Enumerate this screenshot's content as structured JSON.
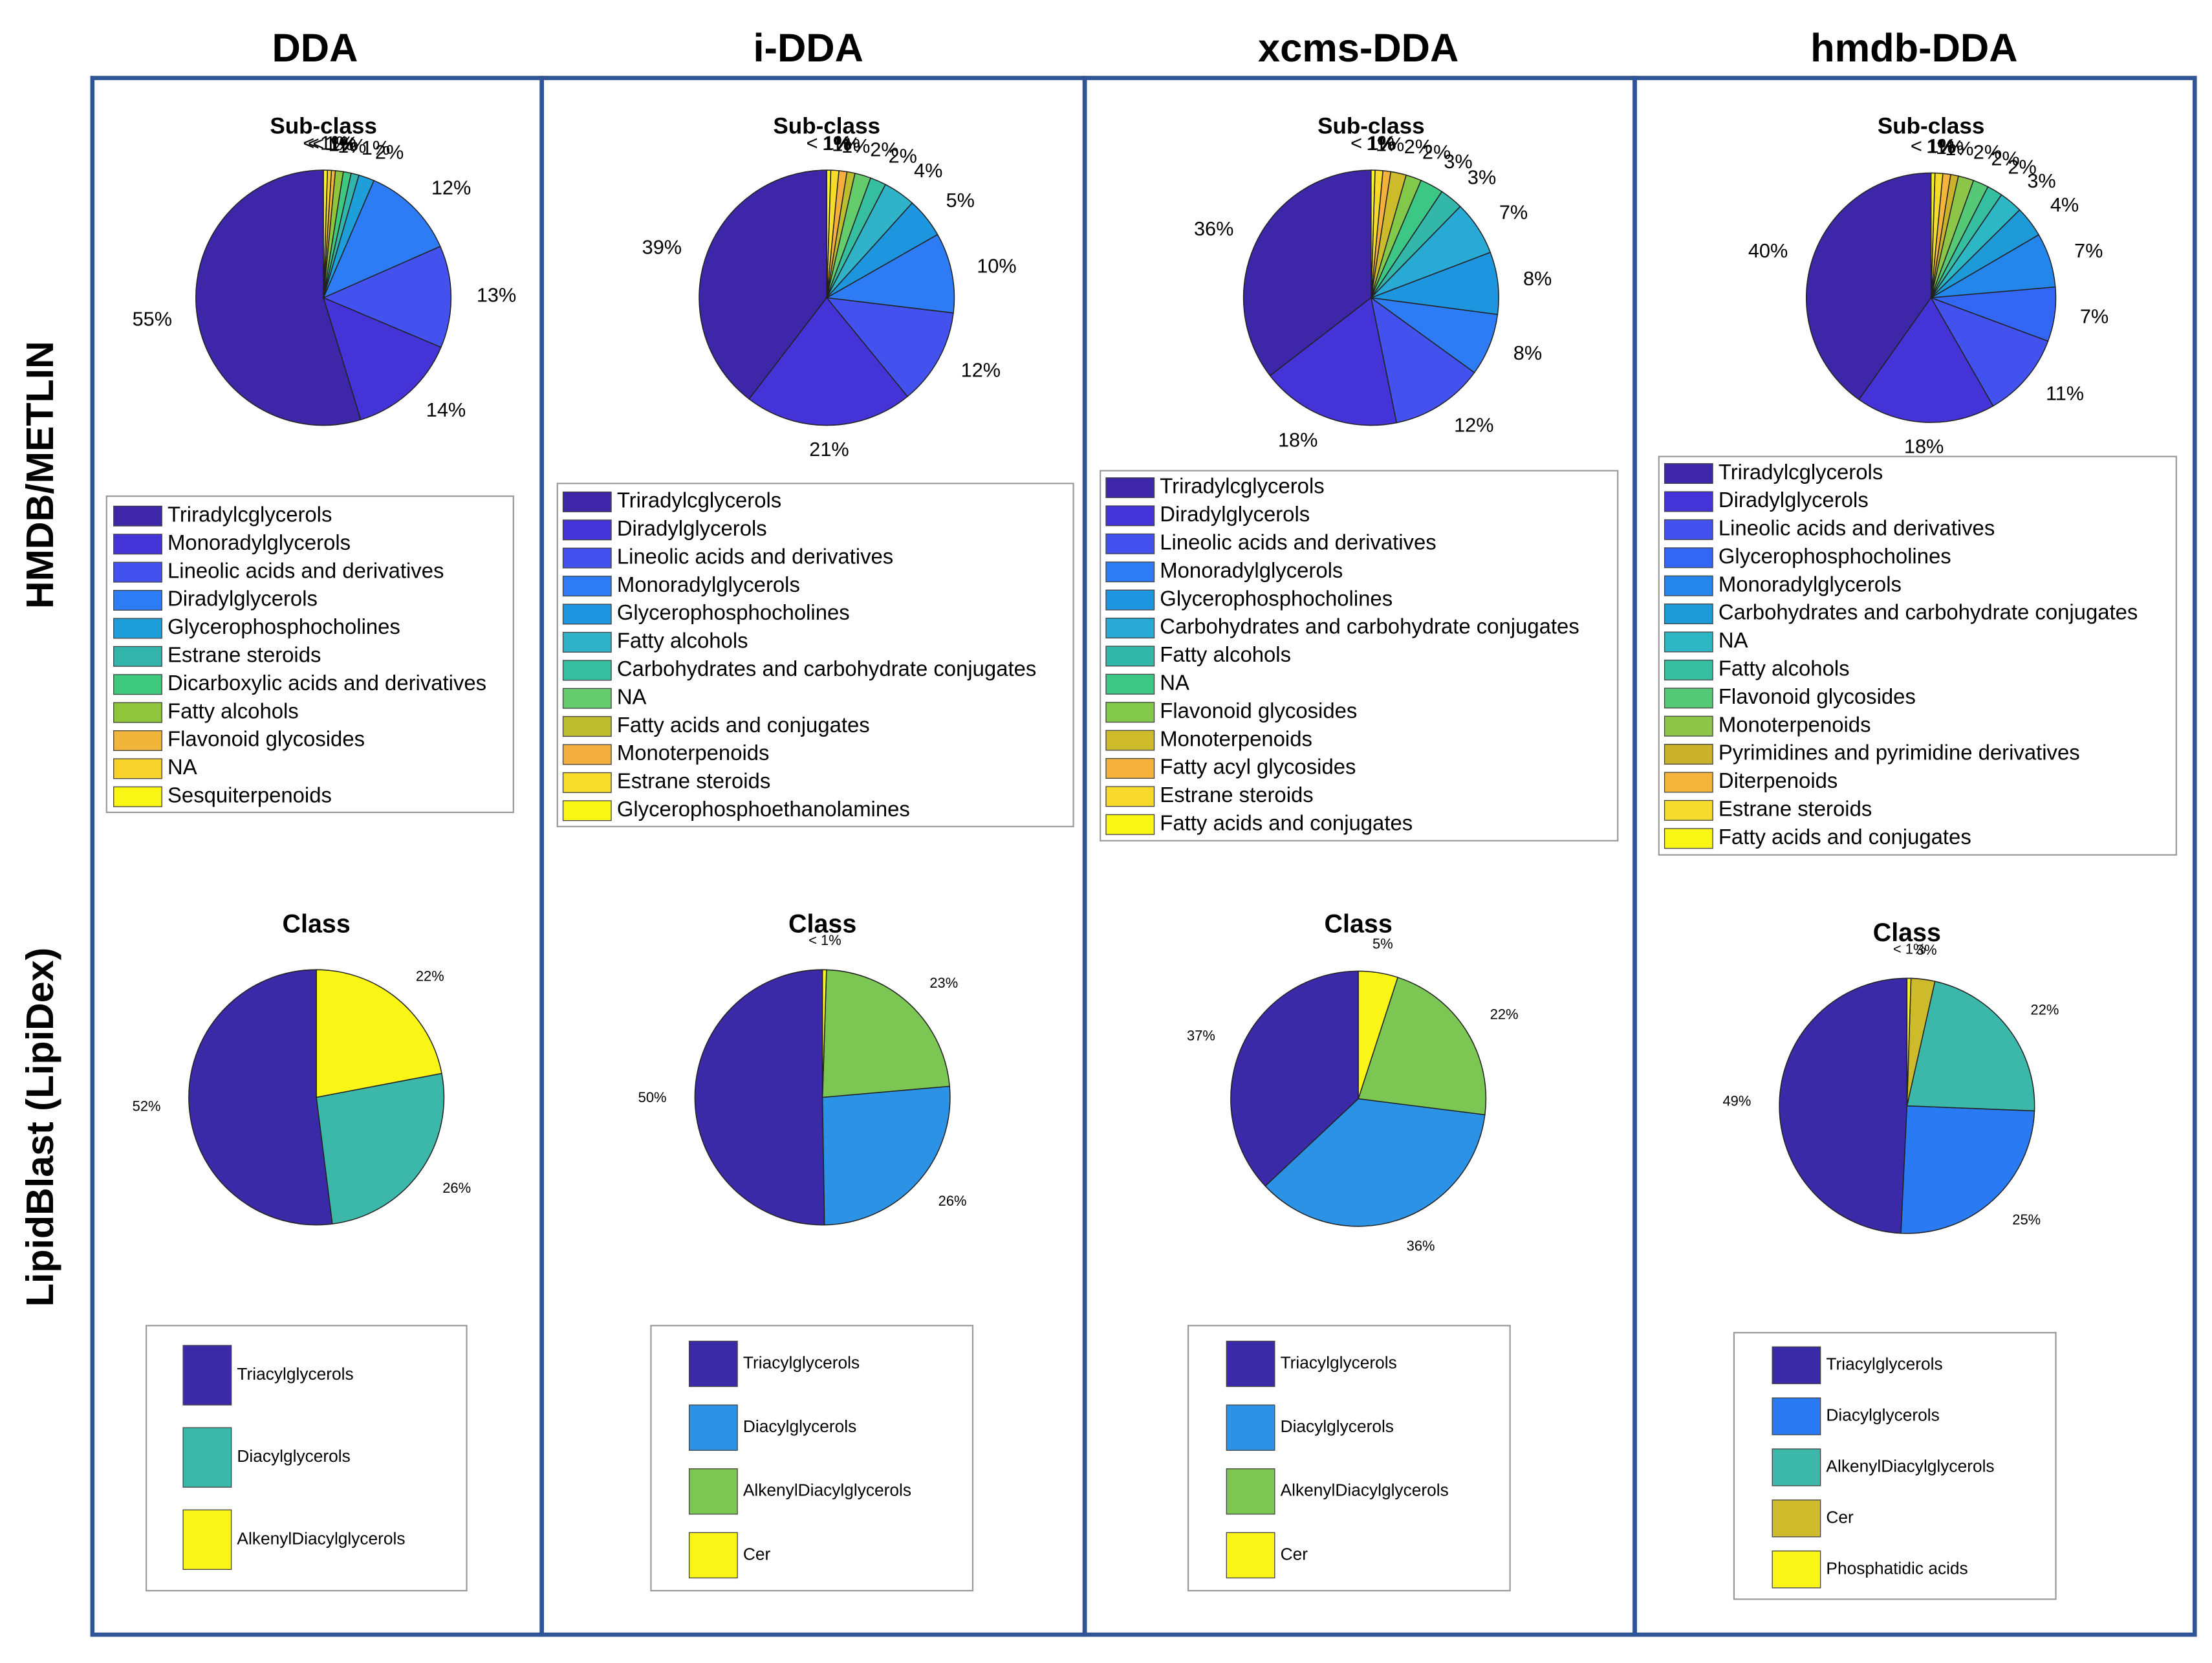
{
  "headers": [
    "DDA",
    "i-DDA",
    "xcms-DDA",
    "hmdb-DDA"
  ],
  "row_labels": [
    "HMDB/METLIN",
    "LipidBlast (LipiDex)"
  ],
  "chart_data": [
    {
      "type": "pie",
      "title": "Sub-class",
      "categories": [
        "Triradylcglycerols",
        "Monoradylglycerols",
        "Lineolic acids and derivatives",
        "Diradylglycerols",
        "Glycerophosphocholines",
        "Estrane steroids",
        "Dicarboxylic acids and derivatives",
        "Fatty alcohols",
        "Flavonoid glycosides",
        "NA",
        "Sesquiterpenoids"
      ],
      "values": [
        55,
        14,
        13,
        12,
        2,
        1,
        1,
        1,
        0.5,
        0.5,
        0.5
      ],
      "value_labels": [
        "55%",
        "14%",
        "13%",
        "12%",
        "2%",
        "1%",
        "1%",
        "1%",
        "< 1%",
        "< 1%",
        "< 1%"
      ],
      "colors": [
        "#3d26a8",
        "#4433d6",
        "#4352ef",
        "#2d7bf5",
        "#1f9fd9",
        "#33b5ab",
        "#3fc97f",
        "#8fc53b",
        "#f0b53a",
        "#f8d32c",
        "#f9f515"
      ]
    },
    {
      "type": "pie",
      "title": "Sub-class",
      "categories": [
        "Triradylcglycerols",
        "Diradylglycerols",
        "Lineolic acids and derivatives",
        "Monoradylglycerols",
        "Glycerophosphocholines",
        "Fatty alcohols",
        "Carbohydrates and carbohydrate conjugates",
        "NA",
        "Fatty acids and conjugates",
        "Monoterpenoids",
        "Estrane steroids",
        "Glycerophosphoethanolamines"
      ],
      "values": [
        39,
        21,
        12,
        10,
        5,
        4,
        2,
        2,
        1,
        1,
        1,
        0.5
      ],
      "value_labels": [
        "39%",
        "21%",
        "12%",
        "10%",
        "5%",
        "4%",
        "2%",
        "2%",
        "1%",
        "1%",
        "1%",
        "< 1%"
      ],
      "colors": [
        "#3d26a8",
        "#4433d6",
        "#4352ef",
        "#2d7bf5",
        "#1e96df",
        "#30b2c8",
        "#35bea0",
        "#65cc6d",
        "#bcbd2f",
        "#f4ae3d",
        "#f7dc2a",
        "#f9f515"
      ]
    },
    {
      "type": "pie",
      "title": "Sub-class",
      "categories": [
        "Triradylcglycerols",
        "Diradylglycerols",
        "Lineolic acids and derivatives",
        "Monoradylglycerols",
        "Glycerophosphocholines",
        "Carbohydrates and carbohydrate conjugates",
        "Fatty alcohols",
        "NA",
        "Flavonoid glycosides",
        "Monoterpenoids",
        "Fatty acyl glycosides",
        "Estrane steroids",
        "Fatty acids and conjugates"
      ],
      "values": [
        36,
        18,
        12,
        8,
        8,
        7,
        3,
        3,
        2,
        2,
        1,
        1,
        0.5
      ],
      "value_labels": [
        "36%",
        "18%",
        "12%",
        "8%",
        "8%",
        "7%",
        "3%",
        "3%",
        "2%",
        "2%",
        "1%",
        "1%",
        "< 1%"
      ],
      "colors": [
        "#3d26a8",
        "#4433d6",
        "#4352ef",
        "#2d7bf5",
        "#1e96df",
        "#28aad4",
        "#33b7ab",
        "#3cc785",
        "#82c84a",
        "#cdbb2c",
        "#f4b23d",
        "#f7d92c",
        "#f9f515"
      ]
    },
    {
      "type": "pie",
      "title": "Sub-class",
      "categories": [
        "Triradylcglycerols",
        "Diradylglycerols",
        "Lineolic acids and derivatives",
        "Glycerophosphocholines",
        "Monoradylglycerols",
        "Carbohydrates and carbohydrate conjugates",
        "NA",
        "Fatty alcohols",
        "Flavonoid glycosides",
        "Monoterpenoids",
        "Pyrimidines and pyrimidine derivatives",
        "Diterpenoids",
        "Estrane steroids",
        "Fatty acids and conjugates"
      ],
      "values": [
        40,
        18,
        11,
        7,
        7,
        4,
        3,
        2,
        2,
        2,
        1,
        1,
        1,
        0.5
      ],
      "value_labels": [
        "40%",
        "18%",
        "11%",
        "7%",
        "7%",
        "4%",
        "3%",
        "2%",
        "2%",
        "2%",
        "1%",
        "1%",
        "1%",
        "< 1%"
      ],
      "colors": [
        "#3d26a8",
        "#4433d6",
        "#4352ef",
        "#3466f6",
        "#2485ea",
        "#1e9ad9",
        "#2db6c4",
        "#35bea0",
        "#55c976",
        "#8dc549",
        "#cbb22c",
        "#f5b53c",
        "#f5dc2c",
        "#f9f515"
      ]
    },
    {
      "type": "pie",
      "title": "Class",
      "categories": [
        "Triacylglycerols",
        "Diacylglycerols",
        "AlkenylDiacylglycerols"
      ],
      "values": [
        52,
        26,
        22
      ],
      "value_labels": [
        "52%",
        "26%",
        "22%"
      ],
      "colors": [
        "#3a2aa8",
        "#3cb8aa",
        "#f9f516"
      ]
    },
    {
      "type": "pie",
      "title": "Class",
      "categories": [
        "Triacylglycerols",
        "Diacylglycerols",
        "AlkenylDiacylglycerols",
        "Cer"
      ],
      "values": [
        50,
        26,
        23,
        0.5
      ],
      "value_labels": [
        "50%",
        "26%",
        "23%",
        "< 1%"
      ],
      "colors": [
        "#3a2aa8",
        "#2b92e6",
        "#7cc653",
        "#f9f516"
      ]
    },
    {
      "type": "pie",
      "title": "Class",
      "categories": [
        "Triacylglycerols",
        "Diacylglycerols",
        "AlkenylDiacylglycerols",
        "Cer"
      ],
      "values": [
        37,
        36,
        22,
        5
      ],
      "value_labels": [
        "37%",
        "36%",
        "22%",
        "5%"
      ],
      "colors": [
        "#3a2aa8",
        "#2b92e6",
        "#7cc653",
        "#f9f516"
      ]
    },
    {
      "type": "pie",
      "title": "Class",
      "categories": [
        "Triacylglycerols",
        "Diacylglycerols",
        "AlkenylDiacylglycerols",
        "Cer",
        "Phosphatidic acids"
      ],
      "values": [
        49,
        25,
        22,
        3,
        0.5
      ],
      "value_labels": [
        "49%",
        "25%",
        "22%",
        "3%",
        "< 1%"
      ],
      "colors": [
        "#3a2aa8",
        "#2a7bf3",
        "#3cb8aa",
        "#cdbb2c",
        "#f9f516"
      ]
    }
  ]
}
